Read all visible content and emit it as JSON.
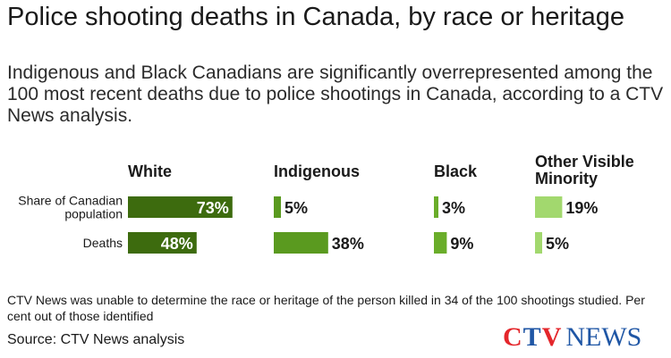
{
  "title": "Police shooting deaths in Canada, by race or heritage",
  "subtitle": "Indigenous and Black Canadians are significantly overrepresented among the 100 most recent deaths due to police shootings in Canada, according to a CTV News analysis.",
  "chart_data": {
    "type": "bar",
    "orientation": "horizontal",
    "groups": [
      {
        "name": "White",
        "color": "#3d6b0e"
      },
      {
        "name": "Indigenous",
        "color": "#5a9a1f"
      },
      {
        "name": "Black",
        "color": "#6aad2a"
      },
      {
        "name": "Other Visible\nMinority",
        "color": "#a2d86e"
      }
    ],
    "rows": [
      "Share of Canadian population",
      "Deaths"
    ],
    "row_labels": [
      "Share of Canadian\npopulation",
      "Deaths"
    ],
    "values": [
      [
        73,
        48
      ],
      [
        5,
        38
      ],
      [
        3,
        9
      ],
      [
        19,
        5
      ]
    ],
    "value_labels": [
      [
        "73%",
        "48%"
      ],
      [
        "5%",
        "38%"
      ],
      [
        "3%",
        "9%"
      ],
      [
        "19%",
        "5%"
      ]
    ],
    "unit": "%"
  },
  "note": "CTV News was unable to determine the race or heritage of the person killed in 34 of the 100 shootings studied. Per cent out of those identified",
  "source": "Source: CTV News analysis",
  "logo": {
    "c": "C",
    "t": "T",
    "v": "V",
    "news": "NEWS"
  }
}
